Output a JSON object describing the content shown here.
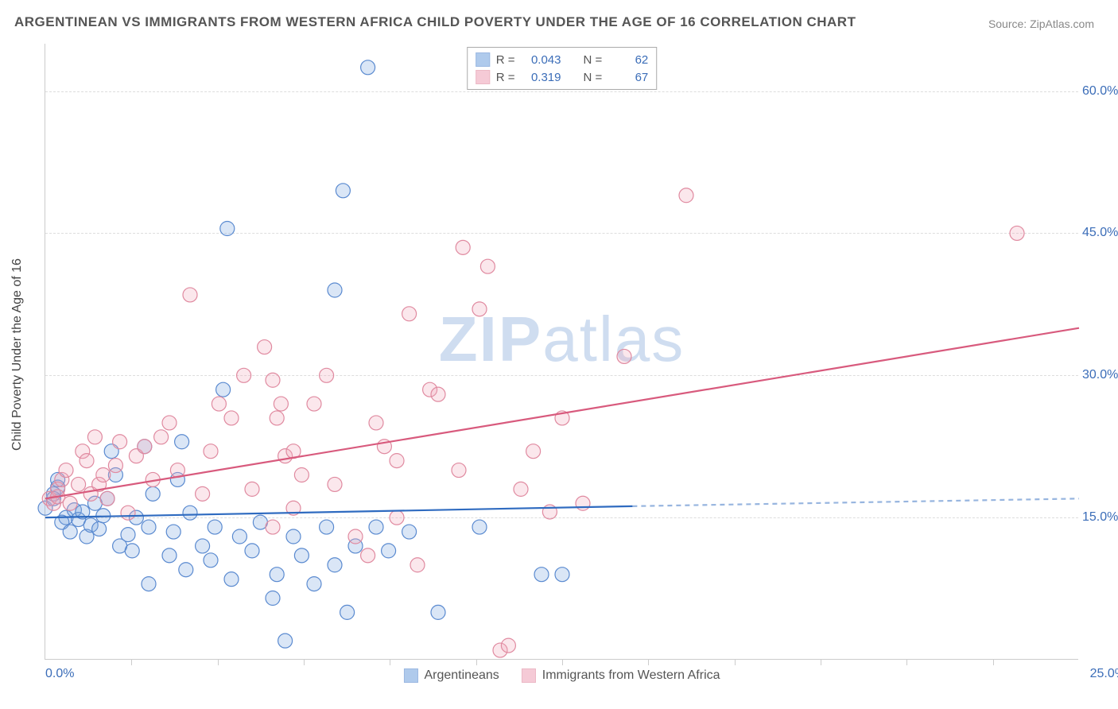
{
  "title": "ARGENTINEAN VS IMMIGRANTS FROM WESTERN AFRICA CHILD POVERTY UNDER THE AGE OF 16 CORRELATION CHART",
  "source": "Source: ZipAtlas.com",
  "y_axis_label": "Child Poverty Under the Age of 16",
  "watermark_a": "ZIP",
  "watermark_b": "atlas",
  "chart": {
    "type": "scatter",
    "xlim": [
      0,
      25
    ],
    "ylim": [
      0,
      65
    ],
    "x_ticks": [
      0.0,
      25.0
    ],
    "x_tick_labels": [
      "0.0%",
      "25.0%"
    ],
    "x_minor_ticks": [
      2.08,
      4.17,
      6.25,
      8.33,
      10.42,
      12.5,
      14.58,
      16.67,
      18.75,
      20.83,
      22.92
    ],
    "y_ticks": [
      15.0,
      30.0,
      45.0,
      60.0
    ],
    "y_tick_labels": [
      "15.0%",
      "30.0%",
      "45.0%",
      "60.0%"
    ],
    "background_color": "#ffffff",
    "grid_color": "#dddddd",
    "marker_radius": 9,
    "marker_stroke_width": 1.2,
    "marker_fill_opacity": 0.28,
    "trend_line_width": 2.2,
    "trend_dash": "6 5",
    "series": [
      {
        "id": "argentineans",
        "label": "Argentineans",
        "color_stroke": "#5a8ad0",
        "color_fill": "#7ba7e0",
        "trend_color": "#2f6bc0",
        "R": "0.043",
        "N": "62",
        "trend_start": [
          0,
          15.0
        ],
        "trend_solid_end": [
          14.2,
          16.2
        ],
        "trend_dash_end": [
          25.0,
          17.0
        ],
        "points": [
          [
            0.2,
            17.5
          ],
          [
            0.3,
            18.2
          ],
          [
            0.0,
            16.0
          ],
          [
            0.5,
            15.0
          ],
          [
            0.4,
            14.5
          ],
          [
            0.6,
            13.5
          ],
          [
            0.7,
            15.8
          ],
          [
            0.2,
            17.0
          ],
          [
            0.3,
            19.0
          ],
          [
            0.8,
            14.8
          ],
          [
            1.0,
            13.0
          ],
          [
            0.9,
            15.6
          ],
          [
            1.1,
            14.2
          ],
          [
            1.3,
            13.8
          ],
          [
            1.2,
            16.5
          ],
          [
            1.5,
            17.0
          ],
          [
            1.6,
            22.0
          ],
          [
            1.4,
            15.2
          ],
          [
            1.7,
            19.5
          ],
          [
            1.8,
            12.0
          ],
          [
            2.0,
            13.2
          ],
          [
            2.1,
            11.5
          ],
          [
            2.2,
            15.0
          ],
          [
            2.4,
            22.5
          ],
          [
            2.5,
            8.0
          ],
          [
            2.5,
            14.0
          ],
          [
            2.6,
            17.5
          ],
          [
            3.0,
            11.0
          ],
          [
            3.1,
            13.5
          ],
          [
            3.2,
            19.0
          ],
          [
            3.3,
            23.0
          ],
          [
            3.4,
            9.5
          ],
          [
            3.5,
            15.5
          ],
          [
            3.8,
            12.0
          ],
          [
            4.0,
            10.5
          ],
          [
            4.1,
            14.0
          ],
          [
            4.3,
            28.5
          ],
          [
            4.4,
            45.5
          ],
          [
            4.5,
            8.5
          ],
          [
            4.7,
            13.0
          ],
          [
            5.0,
            11.5
          ],
          [
            5.2,
            14.5
          ],
          [
            5.5,
            6.5
          ],
          [
            5.6,
            9.0
          ],
          [
            5.8,
            2.0
          ],
          [
            6.0,
            13.0
          ],
          [
            6.2,
            11.0
          ],
          [
            6.5,
            8.0
          ],
          [
            6.8,
            14.0
          ],
          [
            7.0,
            39.0
          ],
          [
            7.0,
            10.0
          ],
          [
            7.2,
            49.5
          ],
          [
            7.3,
            5.0
          ],
          [
            7.5,
            12.0
          ],
          [
            7.8,
            62.5
          ],
          [
            8.0,
            14.0
          ],
          [
            8.3,
            11.5
          ],
          [
            8.8,
            13.5
          ],
          [
            9.5,
            5.0
          ],
          [
            10.5,
            14.0
          ],
          [
            12.0,
            9.0
          ],
          [
            12.5,
            9.0
          ]
        ]
      },
      {
        "id": "western_africa",
        "label": "Immigrants from Western Africa",
        "color_stroke": "#e08aa0",
        "color_fill": "#f0a8bb",
        "trend_color": "#d85a7d",
        "R": "0.319",
        "N": "67",
        "trend_start": [
          0,
          17.0
        ],
        "trend_solid_end": [
          25.0,
          35.0
        ],
        "trend_dash_end": null,
        "points": [
          [
            0.1,
            17.0
          ],
          [
            0.2,
            16.5
          ],
          [
            0.3,
            18.0
          ],
          [
            0.3,
            17.2
          ],
          [
            0.4,
            19.0
          ],
          [
            0.5,
            20.0
          ],
          [
            0.6,
            16.5
          ],
          [
            0.8,
            18.5
          ],
          [
            0.9,
            22.0
          ],
          [
            1.0,
            21.0
          ],
          [
            1.1,
            17.5
          ],
          [
            1.2,
            23.5
          ],
          [
            1.3,
            18.5
          ],
          [
            1.4,
            19.5
          ],
          [
            1.5,
            17.0
          ],
          [
            1.7,
            20.5
          ],
          [
            1.8,
            23.0
          ],
          [
            2.0,
            15.5
          ],
          [
            2.2,
            21.5
          ],
          [
            2.4,
            22.5
          ],
          [
            2.6,
            19.0
          ],
          [
            2.8,
            23.5
          ],
          [
            3.0,
            25.0
          ],
          [
            3.2,
            20.0
          ],
          [
            3.5,
            38.5
          ],
          [
            3.8,
            17.5
          ],
          [
            4.0,
            22.0
          ],
          [
            4.2,
            27.0
          ],
          [
            4.5,
            25.5
          ],
          [
            4.8,
            30.0
          ],
          [
            5.0,
            18.0
          ],
          [
            5.3,
            33.0
          ],
          [
            5.5,
            29.5
          ],
          [
            5.6,
            25.5
          ],
          [
            5.7,
            27.0
          ],
          [
            5.8,
            21.5
          ],
          [
            5.5,
            14.0
          ],
          [
            6.0,
            22.0
          ],
          [
            6.2,
            19.5
          ],
          [
            6.5,
            27.0
          ],
          [
            6.8,
            30.0
          ],
          [
            7.0,
            18.5
          ],
          [
            7.5,
            13.0
          ],
          [
            7.8,
            11.0
          ],
          [
            8.0,
            25.0
          ],
          [
            8.2,
            22.5
          ],
          [
            8.5,
            21.0
          ],
          [
            8.8,
            36.5
          ],
          [
            9.0,
            10.0
          ],
          [
            9.3,
            28.5
          ],
          [
            9.5,
            28.0
          ],
          [
            10.0,
            20.0
          ],
          [
            10.1,
            43.5
          ],
          [
            10.5,
            37.0
          ],
          [
            10.7,
            41.5
          ],
          [
            11.0,
            1.0
          ],
          [
            11.2,
            1.5
          ],
          [
            11.5,
            18.0
          ],
          [
            11.8,
            22.0
          ],
          [
            12.2,
            15.6
          ],
          [
            12.5,
            25.5
          ],
          [
            13.0,
            16.5
          ],
          [
            14.0,
            32.0
          ],
          [
            15.5,
            49.0
          ],
          [
            23.5,
            45.0
          ],
          [
            8.5,
            15.0
          ],
          [
            6.0,
            16.0
          ]
        ]
      }
    ]
  },
  "legend": {
    "r_label": "R =",
    "n_label": "N ="
  }
}
